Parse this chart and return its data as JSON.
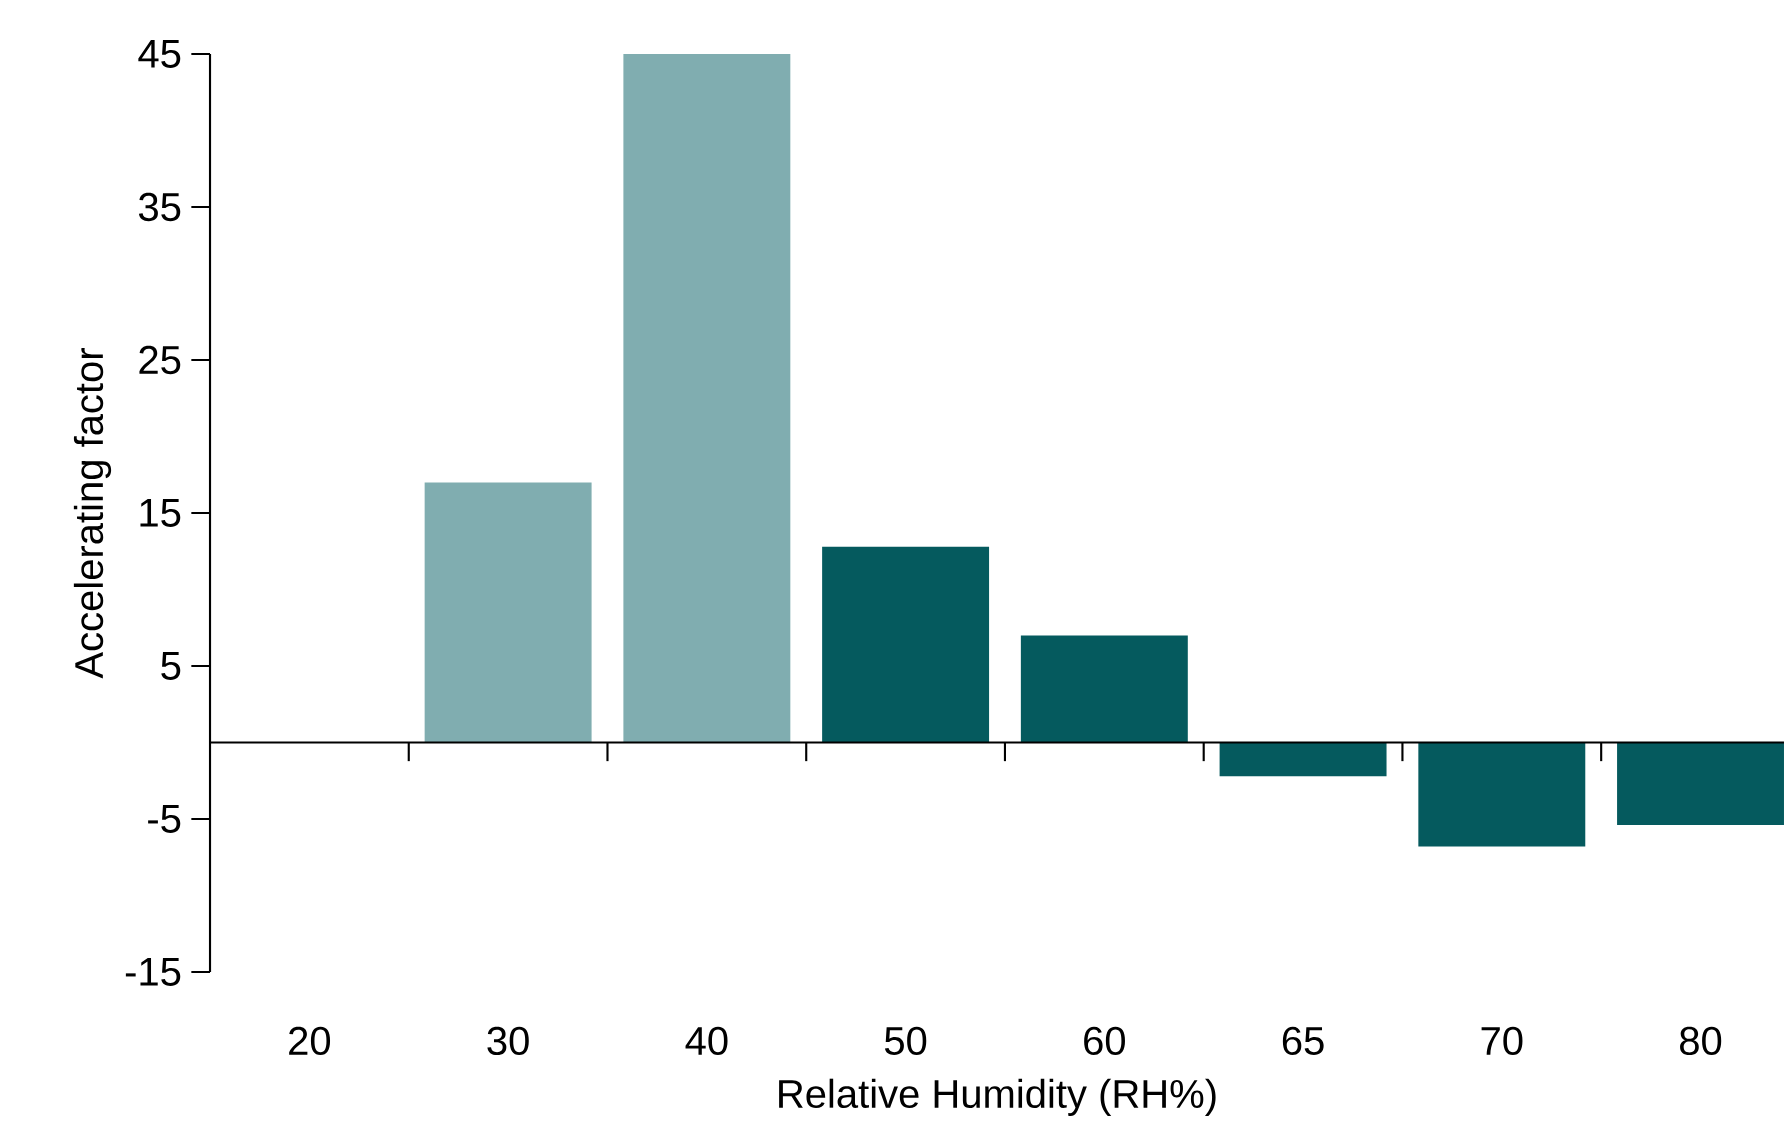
{
  "chart_data": {
    "type": "bar",
    "xlabel": "Relative Humidity (RH%)",
    "ylabel": "Accelerating factor",
    "categories": [
      "20",
      "30",
      "40",
      "50",
      "60",
      "65",
      "70",
      "80"
    ],
    "values": [
      null,
      17,
      45,
      12.8,
      7,
      -2.2,
      -6.8,
      -5.4
    ],
    "colors": [
      "#80adb0",
      "#80adb0",
      "#80adb0",
      "#055a5e",
      "#055a5e",
      "#055a5e",
      "#055a5e",
      "#055a5e"
    ],
    "ylim": [
      -15,
      45
    ],
    "yticks": [
      -15,
      -5,
      5,
      15,
      25,
      35,
      45
    ],
    "grid": false
  }
}
